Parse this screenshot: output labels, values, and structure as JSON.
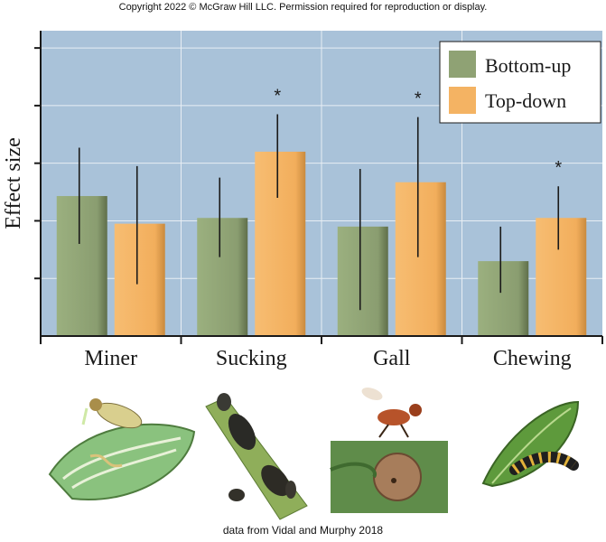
{
  "copyright": "Copyright 2022 © McGraw Hill LLC. Permission required for reproduction or display.",
  "source": "data from Vidal and Murphy 2018",
  "colors": {
    "plot_bg": "#a9c2d9",
    "bottom_up": "#8fa274",
    "top_down": "#f4b363",
    "error_bar": "#1a1a1a",
    "grid": "#e8eef4"
  },
  "chart_data": {
    "type": "bar",
    "title": "",
    "xlabel": "",
    "ylabel": "Effect size",
    "categories": [
      "Miner",
      "Sucking",
      "Gall",
      "Chewing"
    ],
    "ylim": [
      0,
      5.3
    ],
    "y_tick_labels_shown": false,
    "grid": true,
    "legend_position": "top-right",
    "series": [
      {
        "name": "Bottom-up",
        "color": "#8fa274",
        "values": [
          2.43,
          2.05,
          1.9,
          1.3
        ],
        "error_low": [
          1.6,
          1.37,
          0.45,
          0.75
        ],
        "error_high": [
          3.27,
          2.75,
          2.9,
          1.9
        ]
      },
      {
        "name": "Top-down",
        "color": "#f4b363",
        "values": [
          1.95,
          3.2,
          2.67,
          2.05
        ],
        "error_low": [
          0.9,
          2.4,
          1.37,
          1.5
        ],
        "error_high": [
          2.95,
          3.85,
          3.8,
          2.6
        ]
      }
    ],
    "significance_marks": [
      {
        "category": "Sucking",
        "label": "*"
      },
      {
        "category": "Gall",
        "label": "*"
      },
      {
        "category": "Chewing",
        "label": "*"
      }
    ]
  },
  "photos": [
    {
      "category": "Miner",
      "icon": "leaf-miner-larva-icon"
    },
    {
      "category": "Sucking",
      "icon": "aphids-on-stem-icon"
    },
    {
      "category": "Gall",
      "icon": "gall-wasp-and-gall-icon"
    },
    {
      "category": "Chewing",
      "icon": "caterpillar-on-leaf-icon"
    }
  ]
}
